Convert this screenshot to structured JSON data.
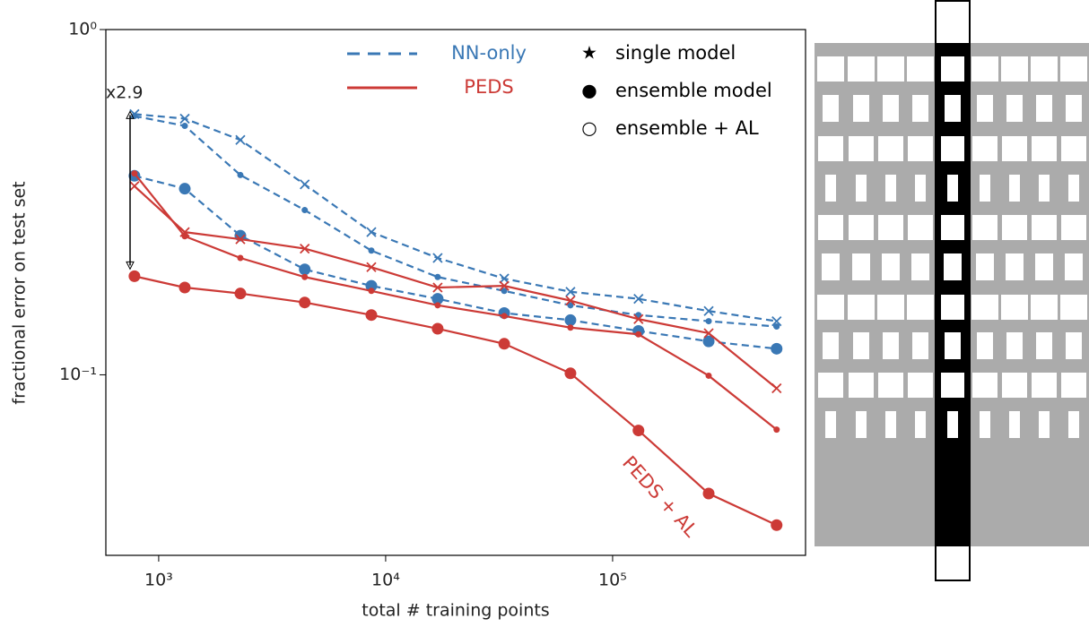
{
  "chart_data": {
    "type": "line",
    "x_scale": "log",
    "y_scale": "log",
    "xlabel": "total # training points",
    "ylabel": "fractional error on test set",
    "x": [
      782,
      1303,
      2290,
      4400,
      8650,
      16950,
      33300,
      65200,
      130000,
      265000,
      528000
    ],
    "xlim": [
      585,
      708000
    ],
    "ylim": [
      0.03,
      1
    ],
    "xticks": [
      {
        "value": 1000,
        "label": "10³"
      },
      {
        "value": 10000,
        "label": "10⁴"
      },
      {
        "value": 100000,
        "label": "10⁵"
      }
    ],
    "yticks": [
      {
        "value": 0.1,
        "label": "10⁻¹"
      },
      {
        "value": 1,
        "label": "10⁰"
      }
    ],
    "series": [
      {
        "color": "#3a78b5",
        "dashed": true,
        "marker": "x",
        "values": [
          0.569,
          0.552,
          0.479,
          0.356,
          0.259,
          0.218,
          0.19,
          0.174,
          0.166,
          0.153,
          0.143
        ]
      },
      {
        "color": "#3a78b5",
        "dashed": true,
        "marker": "small-dot",
        "values": [
          0.562,
          0.526,
          0.379,
          0.3,
          0.229,
          0.192,
          0.175,
          0.159,
          0.149,
          0.143,
          0.138
        ]
      },
      {
        "color": "#3a78b5",
        "dashed": true,
        "marker": "big-dot",
        "values": [
          0.377,
          0.346,
          0.253,
          0.202,
          0.181,
          0.166,
          0.151,
          0.144,
          0.134,
          0.125,
          0.119
        ]
      },
      {
        "color": "#cc3a36",
        "dashed": false,
        "marker": "x",
        "values": [
          0.352,
          0.259,
          0.247,
          0.232,
          0.205,
          0.179,
          0.181,
          0.164,
          0.145,
          0.132,
          0.0914
        ]
      },
      {
        "color": "#cc3a36",
        "dashed": false,
        "marker": "small-dot",
        "values": [
          0.383,
          0.252,
          0.218,
          0.192,
          0.175,
          0.159,
          0.148,
          0.137,
          0.131,
          0.0994,
          0.0694
        ]
      },
      {
        "color": "#cc3a36",
        "dashed": false,
        "marker": "big-dot",
        "values": [
          0.193,
          0.179,
          0.172,
          0.162,
          0.149,
          0.136,
          0.123,
          0.101,
          0.069,
          0.0453,
          0.0367
        ]
      }
    ],
    "legend_lines": [
      {
        "label": "NN-only",
        "color": "#3a78b5",
        "dashed": true
      },
      {
        "label": "PEDS",
        "color": "#cc3a36",
        "dashed": false
      }
    ],
    "legend_markers": [
      {
        "label": "single model",
        "symbol": "★"
      },
      {
        "label": "ensemble model",
        "symbol": "●"
      },
      {
        "label": "ensemble + AL",
        "symbol": "○"
      }
    ],
    "annotations": [
      "x2.9",
      "PEDS + AL"
    ]
  }
}
